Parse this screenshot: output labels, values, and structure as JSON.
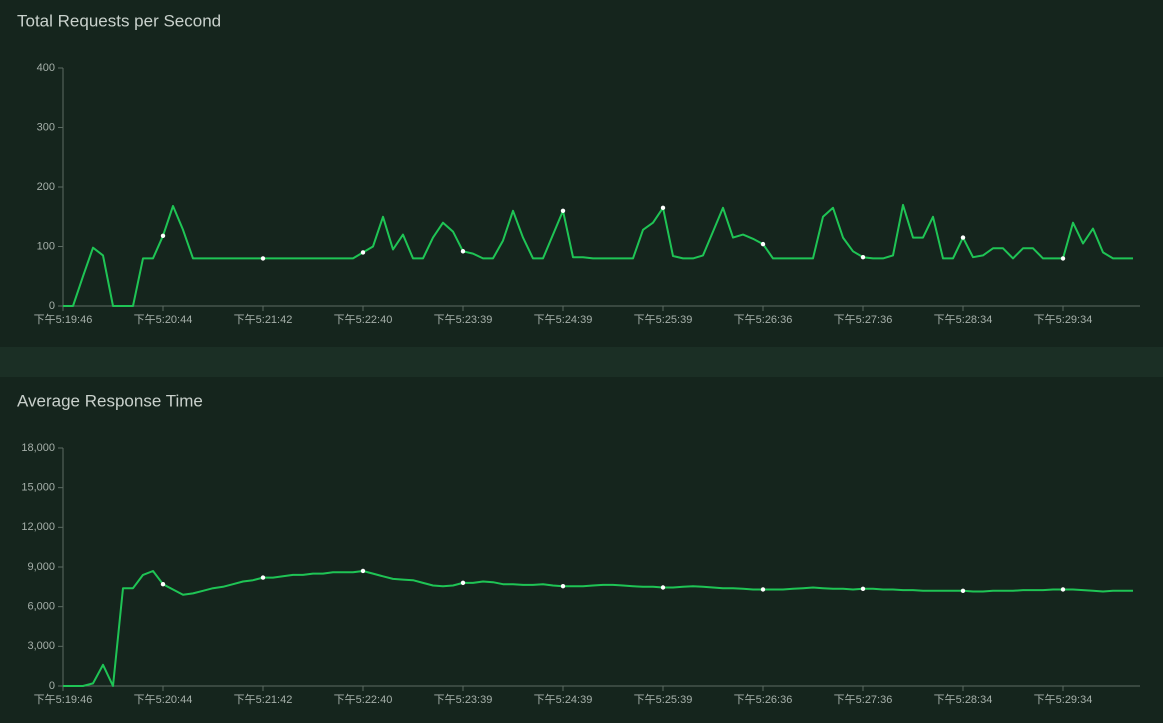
{
  "chart_data": [
    {
      "type": "line",
      "title": "Total Requests per Second",
      "categories": [
        "下午5:19:46",
        null,
        null,
        null,
        null,
        null,
        null,
        null,
        null,
        null,
        "下午5:20:44",
        null,
        null,
        null,
        null,
        null,
        null,
        null,
        null,
        null,
        "下午5:21:42",
        null,
        null,
        null,
        null,
        null,
        null,
        null,
        null,
        null,
        "下午5:22:40",
        null,
        null,
        null,
        null,
        null,
        null,
        null,
        null,
        null,
        "下午5:23:39",
        null,
        null,
        null,
        null,
        null,
        null,
        null,
        null,
        null,
        "下午5:24:39",
        null,
        null,
        null,
        null,
        null,
        null,
        null,
        null,
        null,
        "下午5:25:39",
        null,
        null,
        null,
        null,
        null,
        null,
        null,
        null,
        null,
        "下午5:26:36",
        null,
        null,
        null,
        null,
        null,
        null,
        null,
        null,
        null,
        "下午5:27:36",
        null,
        null,
        null,
        null,
        null,
        null,
        null,
        null,
        null,
        "下午5:28:34",
        null,
        null,
        null,
        null,
        null,
        null,
        null,
        null,
        null,
        "下午5:29:34",
        null,
        null,
        null,
        null,
        null,
        null,
        null
      ],
      "series": [
        {
          "color": "#1fc455",
          "values": [
            0,
            0,
            50,
            98,
            85,
            0,
            0,
            0,
            80,
            80,
            118,
            168,
            128,
            80,
            80,
            80,
            80,
            80,
            80,
            80,
            80,
            80,
            80,
            80,
            80,
            80,
            80,
            80,
            80,
            80,
            90,
            100,
            150,
            95,
            120,
            80,
            80,
            115,
            140,
            125,
            92,
            88,
            80,
            80,
            110,
            160,
            115,
            80,
            80,
            120,
            160,
            82,
            82,
            80,
            80,
            80,
            80,
            80,
            128,
            140,
            165,
            84,
            80,
            80,
            85,
            125,
            165,
            115,
            120,
            113,
            104,
            80,
            80,
            80,
            80,
            80,
            150,
            165,
            115,
            92,
            82,
            80,
            80,
            85,
            170,
            115,
            115,
            150,
            80,
            80,
            115,
            82,
            85,
            97,
            97,
            80,
            97,
            97,
            80,
            80,
            80,
            140,
            105,
            130,
            90,
            80,
            80,
            80
          ]
        }
      ],
      "ylim": [
        0,
        400
      ],
      "yticks": [
        0,
        100,
        200,
        300,
        400
      ]
    },
    {
      "type": "line",
      "title": "Average Response Time",
      "categories": [
        "下午5:19:46",
        null,
        null,
        null,
        null,
        null,
        null,
        null,
        null,
        null,
        "下午5:20:44",
        null,
        null,
        null,
        null,
        null,
        null,
        null,
        null,
        null,
        "下午5:21:42",
        null,
        null,
        null,
        null,
        null,
        null,
        null,
        null,
        null,
        "下午5:22:40",
        null,
        null,
        null,
        null,
        null,
        null,
        null,
        null,
        null,
        "下午5:23:39",
        null,
        null,
        null,
        null,
        null,
        null,
        null,
        null,
        null,
        "下午5:24:39",
        null,
        null,
        null,
        null,
        null,
        null,
        null,
        null,
        null,
        "下午5:25:39",
        null,
        null,
        null,
        null,
        null,
        null,
        null,
        null,
        null,
        "下午5:26:36",
        null,
        null,
        null,
        null,
        null,
        null,
        null,
        null,
        null,
        "下午5:27:36",
        null,
        null,
        null,
        null,
        null,
        null,
        null,
        null,
        null,
        "下午5:28:34",
        null,
        null,
        null,
        null,
        null,
        null,
        null,
        null,
        null,
        "下午5:29:34",
        null,
        null,
        null,
        null,
        null,
        null,
        null
      ],
      "series": [
        {
          "color": "#1fc455",
          "values": [
            0,
            0,
            0,
            200,
            1600,
            0,
            7400,
            7400,
            8400,
            8700,
            7700,
            7300,
            6900,
            7000,
            7200,
            7400,
            7500,
            7700,
            7900,
            8000,
            8200,
            8200,
            8300,
            8400,
            8400,
            8500,
            8500,
            8600,
            8600,
            8600,
            8700,
            8500,
            8300,
            8100,
            8050,
            8000,
            7800,
            7600,
            7550,
            7600,
            7800,
            7800,
            7900,
            7850,
            7700,
            7700,
            7650,
            7650,
            7700,
            7600,
            7550,
            7550,
            7550,
            7600,
            7650,
            7650,
            7600,
            7550,
            7500,
            7500,
            7450,
            7450,
            7500,
            7550,
            7500,
            7450,
            7400,
            7400,
            7350,
            7300,
            7300,
            7300,
            7300,
            7350,
            7400,
            7450,
            7400,
            7350,
            7350,
            7300,
            7350,
            7350,
            7300,
            7300,
            7250,
            7250,
            7200,
            7200,
            7200,
            7200,
            7200,
            7150,
            7150,
            7200,
            7200,
            7200,
            7250,
            7250,
            7250,
            7300,
            7300,
            7300,
            7250,
            7200,
            7150,
            7200,
            7200,
            7200
          ]
        }
      ],
      "ylim": [
        0,
        18000
      ],
      "yticks": [
        0,
        {
          "value": 3000,
          "label": "3,000"
        },
        {
          "value": 6000,
          "label": "6,000"
        },
        {
          "value": 9000,
          "label": "9,000"
        },
        {
          "value": 12000,
          "label": "12,000"
        },
        {
          "value": 15000,
          "label": "15,000"
        },
        {
          "value": 18000,
          "label": "18,000"
        }
      ]
    }
  ]
}
